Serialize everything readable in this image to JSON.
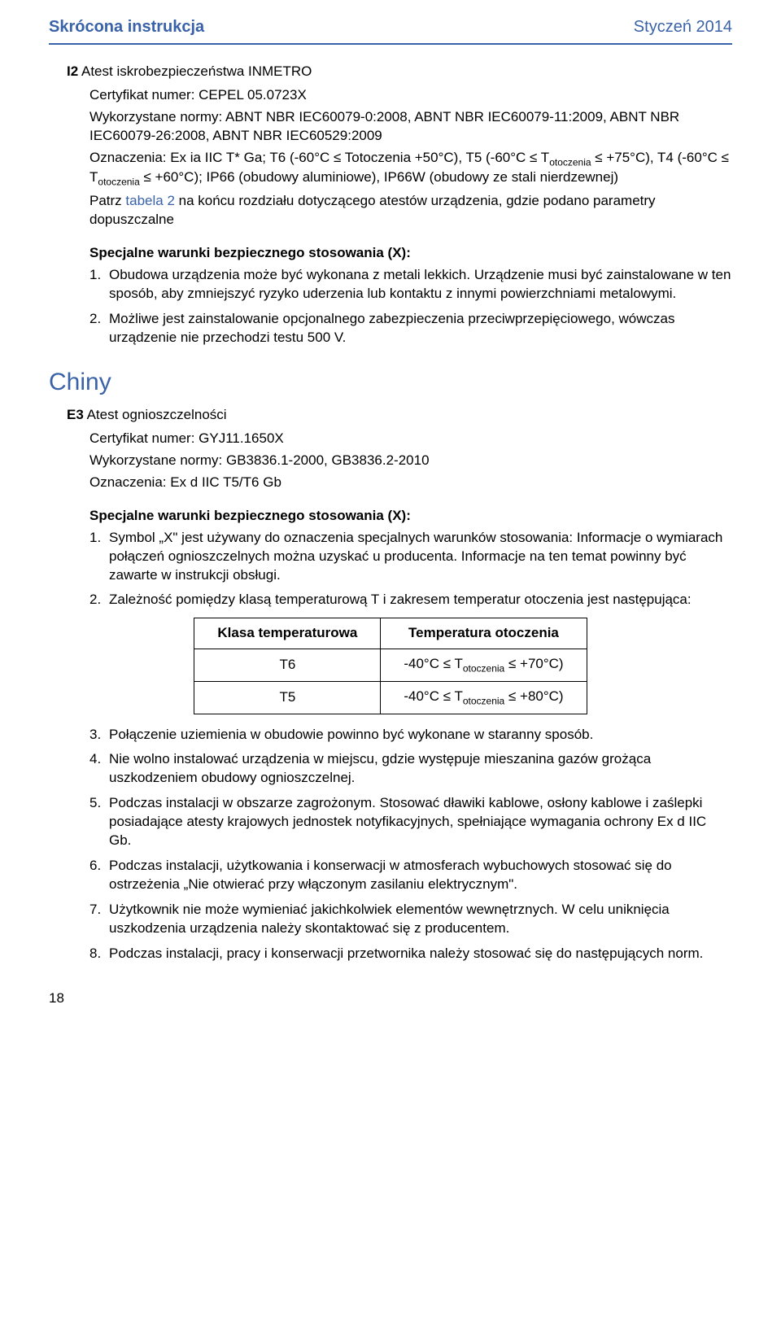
{
  "header": {
    "left": "Skrócona instrukcja",
    "right": "Styczeń 2014"
  },
  "cert_i2": {
    "code": "I2",
    "title": "Atest iskrobezpieczeństwa INMETRO",
    "cert_num": "Certyfikat numer: CEPEL 05.0723X",
    "norms": "Wykorzystane normy: ABNT NBR IEC60079-0:2008, ABNT NBR IEC60079-11:2009, ABNT NBR IEC60079-26:2008, ABNT NBR IEC60529:2009",
    "mark_a": "Oznaczenia: Ex ia IIC T* Ga; T6 (-60°C ≤ Totoczenia +50°C), T5 (-60°C ≤ T",
    "mark_sub1": "otoczenia",
    "mark_b": " ≤ +75°C), T4 (-60°C ≤ T",
    "mark_sub2": "otoczenia",
    "mark_c": " ≤ +60°C); IP66 (obudowy aluminiowe), IP66W (obudowy ze stali nierdzewnej)",
    "see_a": "Patrz ",
    "see_link": "tabela 2",
    "see_b": " na końcu rozdziału dotyczącego atestów urządzenia, gdzie podano parametry dopuszczalne"
  },
  "spec_heading": "Specjalne warunki bezpiecznego stosowania (X):",
  "spec1": [
    {
      "n": "1.",
      "t": "Obudowa urządzenia może być wykonana z metali lekkich. Urządzenie musi być zainstalowane w ten sposób, aby zmniejszyć ryzyko uderzenia lub kontaktu z innymi powierzchniami metalowymi."
    },
    {
      "n": "2.",
      "t": "Możliwe jest zainstalowanie opcjonalnego zabezpieczenia przeciwprzepięciowego, wówczas urządzenie nie przechodzi testu 500 V."
    }
  ],
  "country": "Chiny",
  "cert_e3": {
    "code": "E3",
    "title": "Atest ognioszczelności",
    "cert_num": "Certyfikat numer: GYJ11.1650X",
    "norms": "Wykorzystane normy: GB3836.1-2000, GB3836.2-2010",
    "mark": "Oznaczenia: Ex d IIC T5/T6 Gb"
  },
  "spec2": [
    {
      "n": "1.",
      "t": "Symbol „X\" jest używany do oznaczenia specjalnych warunków stosowania: Informacje o wymiarach połączeń ognioszczelnych można uzyskać u producenta. Informacje na ten temat powinny być zawarte w instrukcji obsługi."
    },
    {
      "n": "2.",
      "t": "Zależność pomiędzy klasą temperaturową T i zakresem temperatur otoczenia jest następująca:"
    }
  ],
  "temp_table": {
    "h1": "Klasa temperaturowa",
    "h2": "Temperatura otoczenia",
    "r1c1": "T6",
    "r1c2a": "-40°C ≤ T",
    "r1c2sub": "otoczenia",
    "r1c2b": " ≤ +70°C)",
    "r2c1": "T5",
    "r2c2a": "-40°C ≤ T",
    "r2c2sub": "otoczenia",
    "r2c2b": " ≤ +80°C)"
  },
  "spec3": [
    {
      "n": "3.",
      "t": "Połączenie uziemienia w obudowie powinno być wykonane w staranny sposób."
    },
    {
      "n": "4.",
      "t": "Nie wolno instalować urządzenia w miejscu, gdzie występuje mieszanina gazów grożąca uszkodzeniem obudowy ognioszczelnej."
    },
    {
      "n": "5.",
      "t": "Podczas instalacji w obszarze zagrożonym. Stosować dławiki kablowe, osłony kablowe i zaślepki posiadające atesty krajowych jednostek notyfikacyjnych, spełniające wymagania ochrony Ex d IIC Gb."
    },
    {
      "n": "6.",
      "t": "Podczas instalacji, użytkowania i konserwacji w atmosferach wybuchowych stosować się do ostrzeżenia „Nie otwierać przy włączonym zasilaniu elektrycznym\"."
    },
    {
      "n": "7.",
      "t": "Użytkownik nie może wymieniać jakichkolwiek elementów wewnętrznych. W celu uniknięcia uszkodzenia urządzenia należy skontaktować się z producentem."
    },
    {
      "n": "8.",
      "t": "Podczas instalacji, pracy i konserwacji przetwornika należy stosować się do następujących norm."
    }
  ],
  "page": "18"
}
